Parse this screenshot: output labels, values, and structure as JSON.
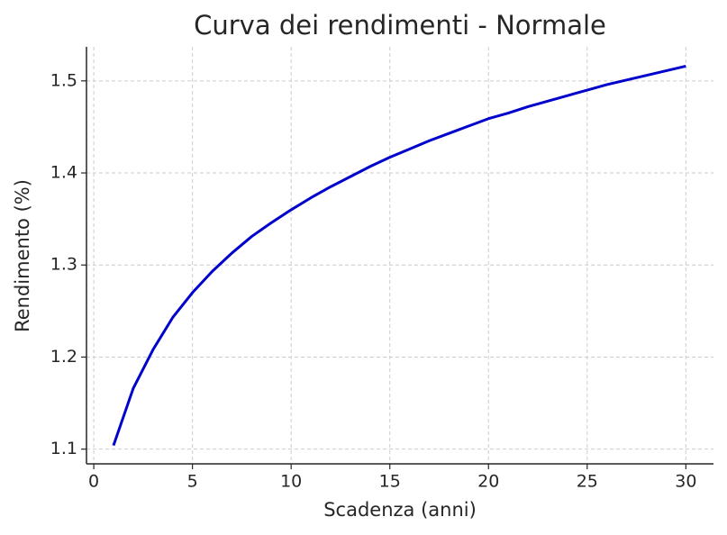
{
  "chart_data": {
    "type": "line",
    "title": "Curva dei rendimenti - Normale",
    "x_label": "Scadenza (anni)",
    "y_label": "Rendimento (%)",
    "x": [
      1,
      2,
      3,
      4,
      5,
      6,
      7,
      8,
      9,
      10,
      11,
      12,
      13,
      14,
      15,
      16,
      17,
      18,
      19,
      20,
      21,
      22,
      23,
      24,
      25,
      26,
      27,
      28,
      29,
      30
    ],
    "series": [
      {
        "color": "#0000cd",
        "values": [
          1.104,
          1.166,
          1.208,
          1.243,
          1.27,
          1.293,
          1.313,
          1.331,
          1.346,
          1.36,
          1.373,
          1.385,
          1.396,
          1.407,
          1.417,
          1.426,
          1.435,
          1.443,
          1.451,
          1.459,
          1.465,
          1.472,
          1.478,
          1.484,
          1.49,
          1.496,
          1.501,
          1.506,
          1.511,
          1.516
        ]
      }
    ],
    "xlim": [
      -0.37,
      31.4
    ],
    "ylim": [
      1.084,
      1.537
    ],
    "xticks": [
      0,
      5,
      10,
      15,
      20,
      25,
      30
    ],
    "yticks": [
      1.1,
      1.2,
      1.3,
      1.4,
      1.5
    ],
    "grid": true
  }
}
